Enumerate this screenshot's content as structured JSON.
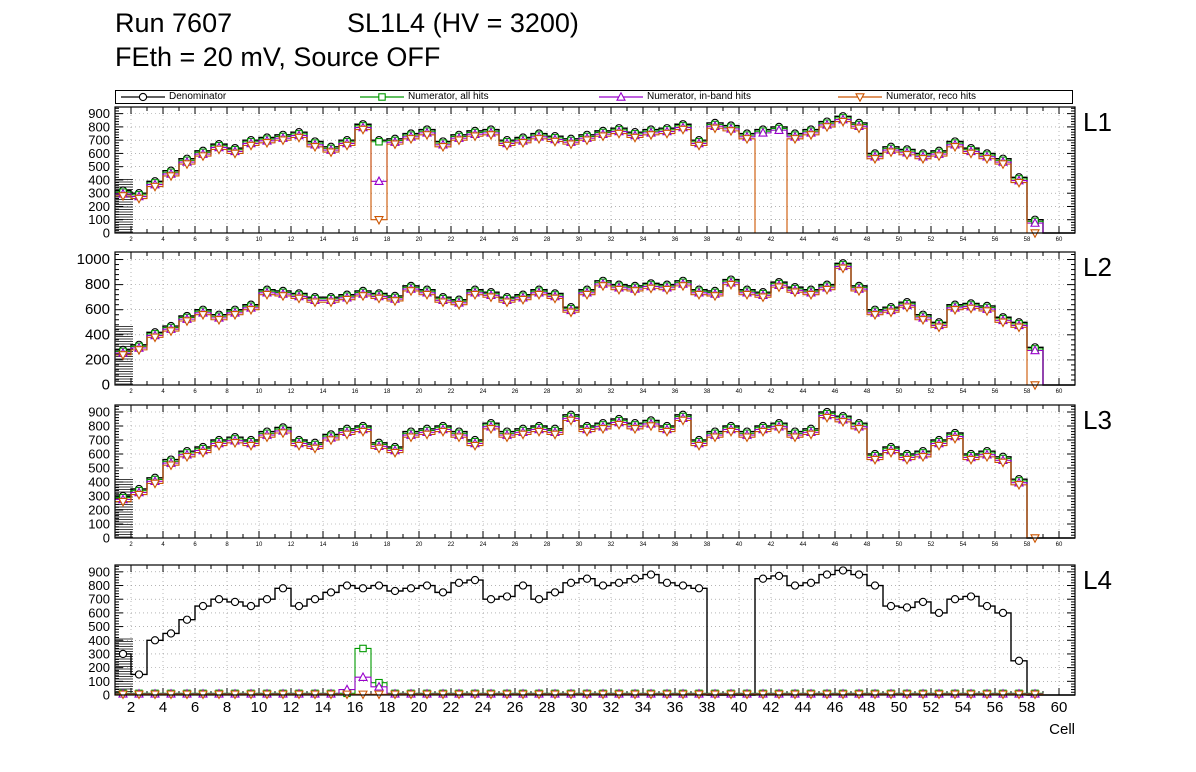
{
  "title": {
    "run": "Run 7607",
    "sl": "SL1L4 (HV = 3200)",
    "subtitle": "FEth = 20 mV, Source OFF"
  },
  "chart_data": {
    "type": "line",
    "x_label": "Cell",
    "x_range": [
      1,
      61
    ],
    "x_tick_labels": [
      2,
      4,
      6,
      8,
      10,
      12,
      14,
      16,
      18,
      20,
      22,
      24,
      26,
      28,
      30,
      32,
      34,
      36,
      38,
      40,
      42,
      44,
      46,
      48,
      50,
      52,
      54,
      56,
      58,
      60
    ],
    "grid": true,
    "legend_position": "top",
    "series": [
      {
        "key": "denominator",
        "label": "Denominator",
        "color": "#000000",
        "marker": "circle"
      },
      {
        "key": "all",
        "label": "Numerator, all hits",
        "color": "#009900",
        "marker": "square"
      },
      {
        "key": "inband",
        "label": "Numerator, in-band hits",
        "color": "#9900cc",
        "marker": "triangle-up"
      },
      {
        "key": "reco",
        "label": "Numerator, reco hits",
        "color": "#cc5500",
        "marker": "triangle-down"
      }
    ],
    "panels": [
      {
        "name": "L1",
        "ylim": [
          0,
          950
        ],
        "yticks": [
          0,
          100,
          200,
          300,
          400,
          500,
          600,
          700,
          800,
          900
        ],
        "ytick_step": 100,
        "hatch_top": 410,
        "denominator": [
          320,
          300,
          390,
          470,
          560,
          620,
          670,
          640,
          700,
          720,
          740,
          760,
          690,
          650,
          700,
          820,
          700,
          710,
          750,
          780,
          690,
          740,
          770,
          780,
          700,
          720,
          750,
          730,
          710,
          740,
          770,
          790,
          760,
          780,
          790,
          820,
          700,
          830,
          810,
          750,
          780,
          800,
          750,
          780,
          840,
          880,
          830,
          600,
          650,
          630,
          600,
          620,
          690,
          640,
          600,
          560,
          420,
          100,
          0,
          0
        ],
        "numerators": [
          {
            "key": "all",
            "mode": "delta",
            "delta": -12,
            "overrides": {}
          },
          {
            "key": "inband",
            "mode": "delta",
            "delta": -25,
            "overrides": {
              "17": 390
            }
          },
          {
            "key": "reco",
            "mode": "delta",
            "delta": -40,
            "overrides": {
              "17": 100,
              "41": 0,
              "42": 0,
              "58": 0
            },
            "marker_at_zero": [
              58
            ]
          }
        ]
      },
      {
        "name": "L2",
        "ylim": [
          0,
          1060
        ],
        "yticks": [
          0,
          200,
          400,
          600,
          800,
          1000
        ],
        "ytick_step": 200,
        "hatch_top": 470,
        "denominator": [
          280,
          320,
          420,
          470,
          550,
          600,
          560,
          600,
          640,
          760,
          750,
          730,
          700,
          700,
          720,
          750,
          730,
          710,
          790,
          760,
          700,
          680,
          760,
          740,
          700,
          720,
          760,
          730,
          620,
          760,
          830,
          800,
          790,
          810,
          800,
          830,
          760,
          750,
          840,
          760,
          740,
          820,
          780,
          760,
          800,
          970,
          790,
          600,
          620,
          660,
          560,
          500,
          640,
          650,
          630,
          540,
          500,
          300,
          0,
          0
        ],
        "numerators": [
          {
            "key": "all",
            "mode": "delta",
            "delta": -12,
            "overrides": {}
          },
          {
            "key": "inband",
            "mode": "delta",
            "delta": -25,
            "overrides": {}
          },
          {
            "key": "reco",
            "mode": "delta",
            "delta": -40,
            "overrides": {
              "58": 0
            },
            "marker_at_zero": [
              58
            ]
          }
        ]
      },
      {
        "name": "L3",
        "ylim": [
          0,
          950
        ],
        "yticks": [
          0,
          100,
          200,
          300,
          400,
          500,
          600,
          700,
          800,
          900
        ],
        "ytick_step": 100,
        "hatch_top": 430,
        "denominator": [
          300,
          350,
          430,
          560,
          620,
          650,
          700,
          720,
          700,
          760,
          790,
          700,
          680,
          740,
          780,
          800,
          680,
          650,
          760,
          780,
          800,
          760,
          700,
          820,
          760,
          780,
          800,
          780,
          880,
          800,
          820,
          850,
          820,
          840,
          800,
          880,
          700,
          760,
          800,
          760,
          800,
          820,
          760,
          780,
          900,
          870,
          820,
          600,
          650,
          600,
          620,
          700,
          750,
          600,
          620,
          580,
          420,
          0,
          0,
          0
        ],
        "numerators": [
          {
            "key": "all",
            "mode": "delta",
            "delta": -12,
            "overrides": {}
          },
          {
            "key": "inband",
            "mode": "delta",
            "delta": -25,
            "overrides": {}
          },
          {
            "key": "reco",
            "mode": "delta",
            "delta": -40,
            "overrides": {},
            "marker_at_zero": [
              58
            ]
          }
        ]
      },
      {
        "name": "L4",
        "ylim": [
          0,
          950
        ],
        "yticks": [
          0,
          100,
          200,
          300,
          400,
          500,
          600,
          700,
          800,
          900
        ],
        "ytick_step": 100,
        "hatch_top": 420,
        "denominator": [
          300,
          150,
          400,
          450,
          550,
          650,
          700,
          680,
          650,
          700,
          780,
          650,
          700,
          750,
          800,
          780,
          800,
          760,
          780,
          800,
          750,
          820,
          840,
          700,
          720,
          800,
          700,
          750,
          820,
          850,
          800,
          820,
          850,
          880,
          820,
          800,
          780,
          0,
          0,
          0,
          850,
          870,
          800,
          820,
          880,
          910,
          880,
          800,
          650,
          640,
          680,
          600,
          700,
          720,
          650,
          600,
          250,
          0,
          0,
          0
        ],
        "numerators": [
          {
            "key": "all",
            "mode": "flat",
            "base": 12,
            "overrides": {
              "16": 340,
              "17": 90
            }
          },
          {
            "key": "inband",
            "mode": "flat",
            "base": 8,
            "overrides": {
              "15": 40,
              "16": 130,
              "17": 60
            }
          },
          {
            "key": "reco",
            "mode": "flat",
            "base": 5,
            "overrides": {}
          }
        ]
      }
    ]
  }
}
